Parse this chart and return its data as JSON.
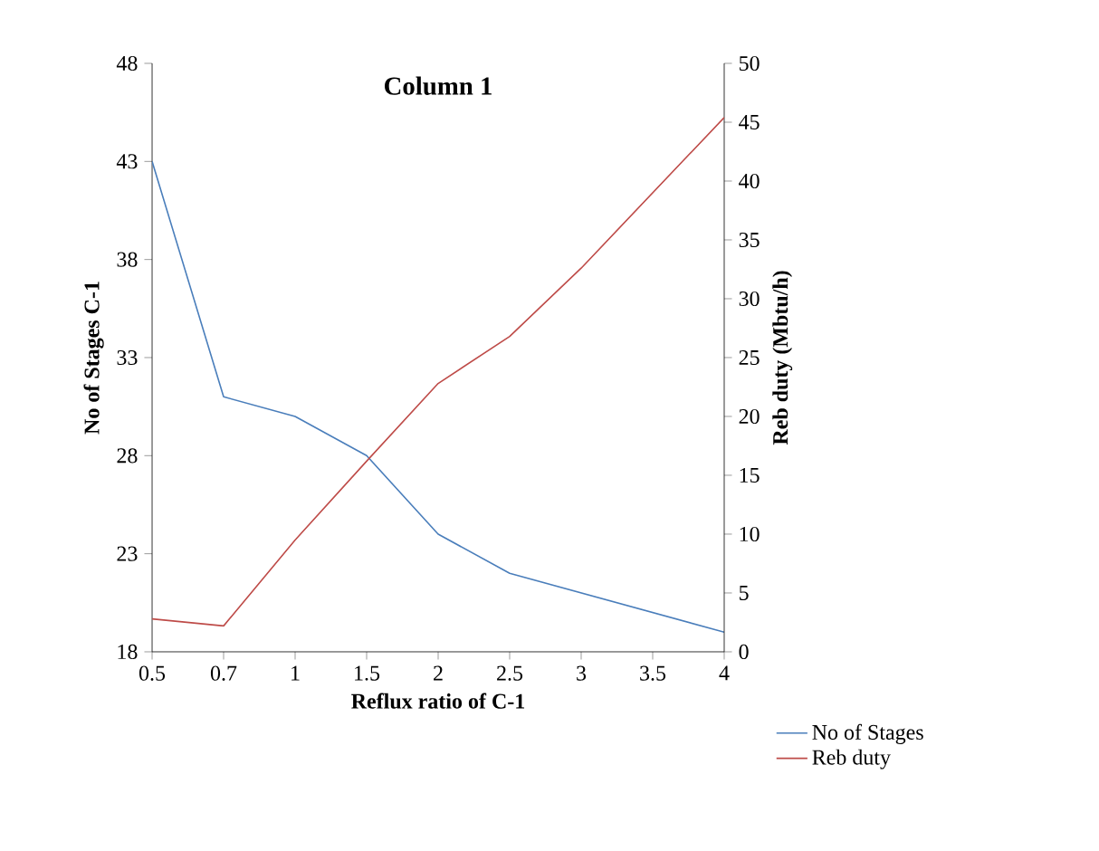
{
  "chart_data": {
    "type": "line",
    "title": "Column 1",
    "xlabel": "Reflux ratio of C-1",
    "ylabel": "No of Stages C-1",
    "y2label": "Reb duty (Mbtu/h)",
    "categories": [
      "0.5",
      "0.7",
      "1",
      "1.5",
      "2",
      "2.5",
      "3",
      "3.5",
      "4"
    ],
    "series": [
      {
        "name": "No of Stages",
        "color": "#4a7ebb",
        "values": [
          43,
          31,
          30,
          28,
          24,
          22,
          21,
          20,
          19
        ]
      },
      {
        "name": "Reb duty",
        "color": "#be4b48",
        "axis": "y2",
        "values": [
          2.8,
          2.2,
          9.5,
          16.2,
          22.8,
          26.8,
          32.6,
          39,
          45.4
        ]
      }
    ],
    "ylim": [
      18,
      48
    ],
    "yticks": [
      18,
      23,
      28,
      33,
      38,
      43,
      48
    ],
    "y2lim": [
      0,
      50
    ],
    "y2ticks": [
      0,
      5,
      10,
      15,
      20,
      25,
      30,
      35,
      40,
      45,
      50
    ],
    "legend": "bottom right"
  }
}
